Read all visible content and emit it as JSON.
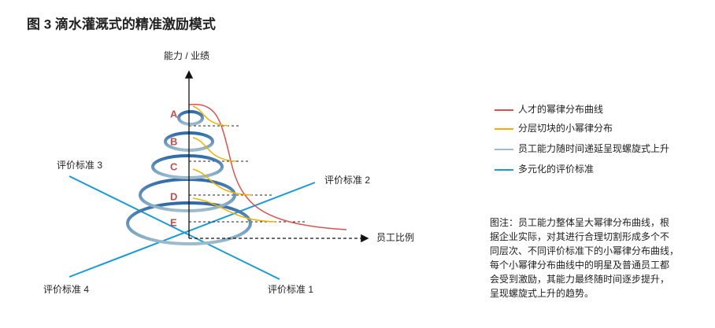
{
  "header": {
    "title": "图 3  滴水灌溉式的精准激励模式"
  },
  "axes": {
    "y_label": "能力 / 业绩",
    "x_label": "员工比例"
  },
  "levels": [
    "A",
    "B",
    "C",
    "D",
    "E"
  ],
  "standards": [
    "评价标准 1",
    "评价标准 2",
    "评价标准 3",
    "评价标准 4"
  ],
  "legend": [
    "人才的幂律分布曲线",
    "分层切块的小幂律分布",
    "员工能力随时间递延呈现螺旋式上升",
    "多元化的评价标准"
  ],
  "note": [
    "图注：员工能力整体呈大幂律分布曲线，根",
    "据企业实际，对其进行合理切割形成多个不",
    "同层次、不同评价标准下的小幂律分布曲线，",
    "每个小幂律分布曲线中的明星及普通员工都",
    "会受到激励，其能力最终随时间逐步提升，",
    "呈现螺旋式上升的趋势。"
  ]
}
